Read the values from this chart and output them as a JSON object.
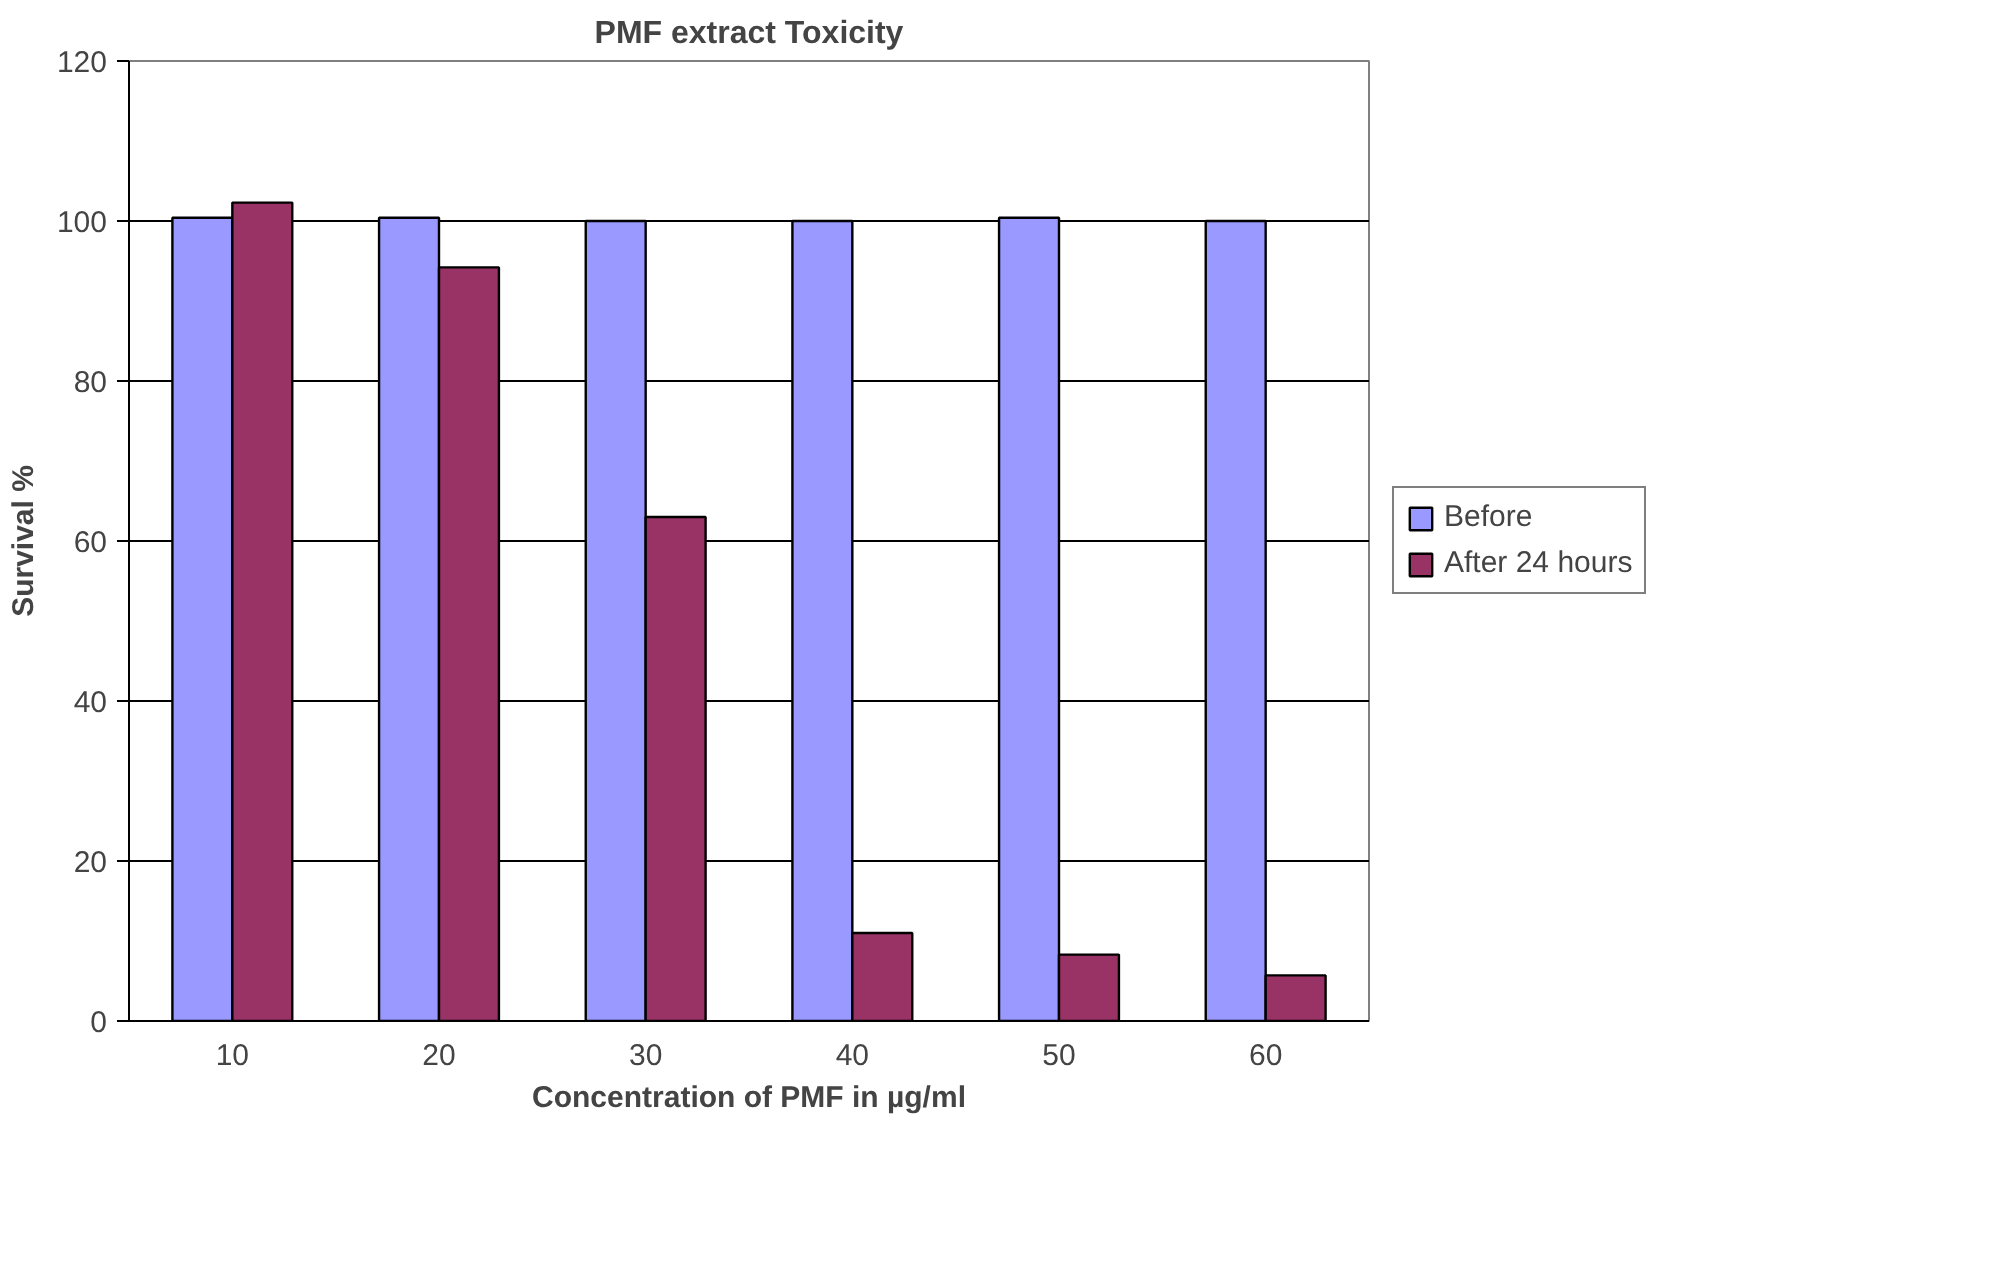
{
  "chart_data": {
    "type": "bar",
    "title": "PMF extract Toxicity",
    "xlabel": "Concentration of PMF in µg/ml",
    "ylabel": "Survival %",
    "categories": [
      "10",
      "20",
      "30",
      "40",
      "50",
      "60"
    ],
    "series": [
      {
        "name": "Before",
        "color": "#9999ff",
        "values": [
          100.4,
          100.4,
          100,
          100,
          100.4,
          100
        ]
      },
      {
        "name": "After 24 hours",
        "color": "#993366",
        "values": [
          102.3,
          94.2,
          63,
          11,
          8.3,
          5.7
        ]
      }
    ],
    "ylim": [
      0,
      120
    ],
    "yticks": [
      0,
      20,
      40,
      60,
      80,
      100,
      120
    ],
    "grid": "y",
    "legend": "right"
  }
}
